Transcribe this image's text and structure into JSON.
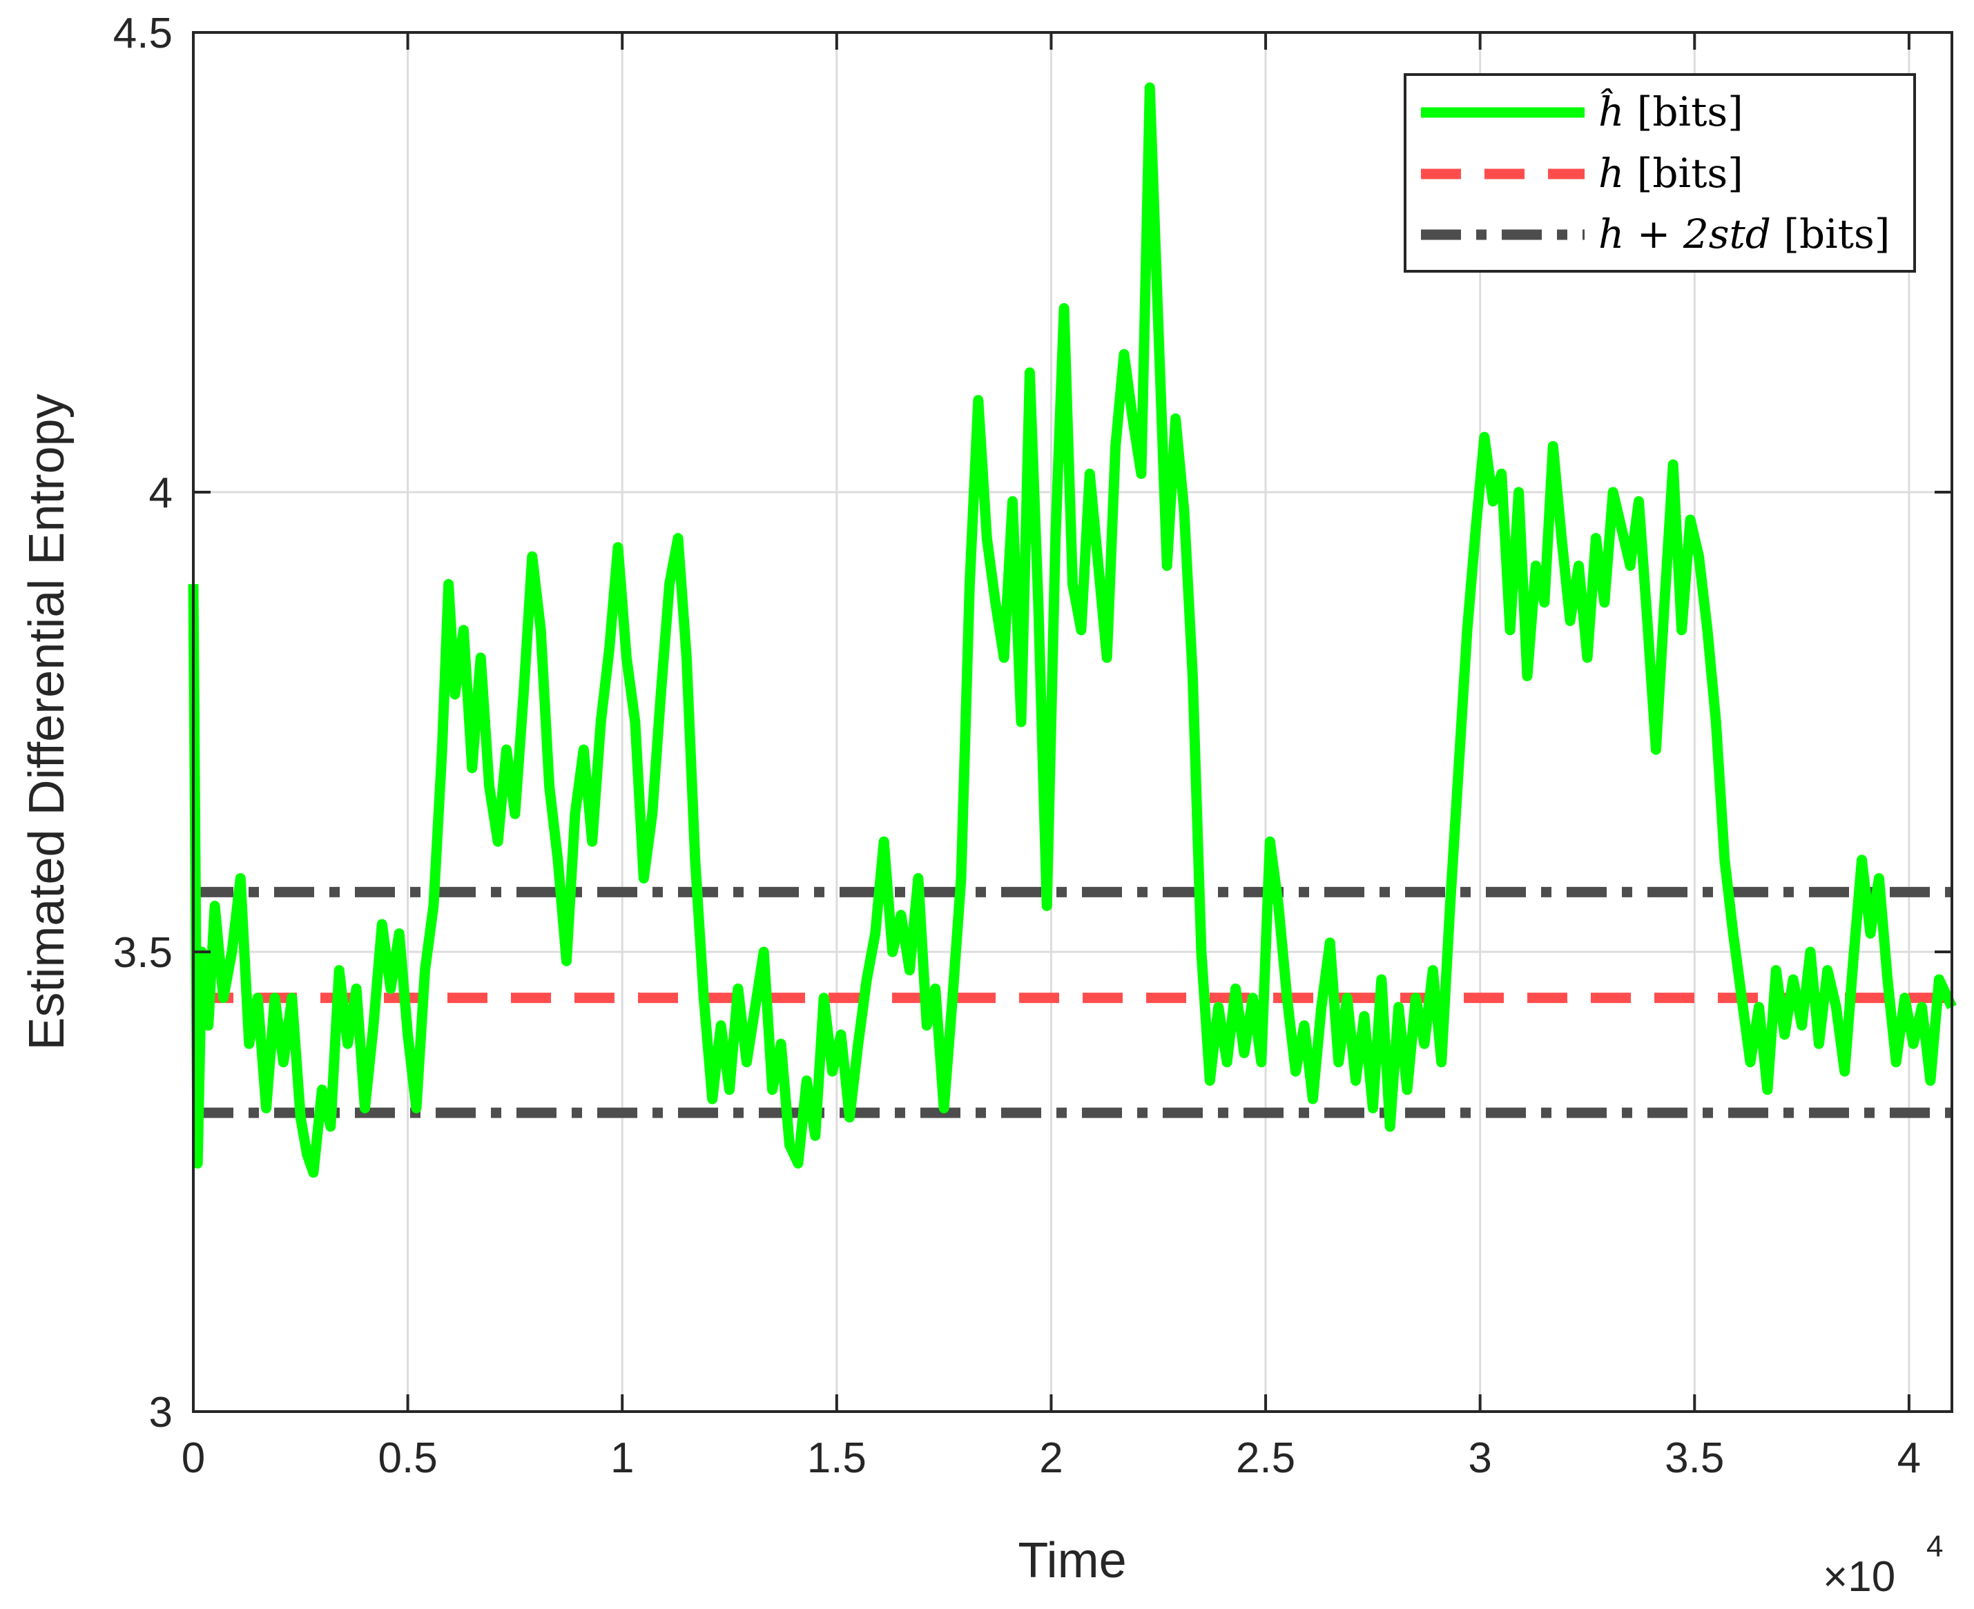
{
  "chart_data": {
    "type": "line",
    "xlabel": "Time",
    "ylabel": "Estimated Differential Entropy",
    "x_exponent_label": "×10",
    "x_exponent_power": "4",
    "xlim": [
      0,
      41000
    ],
    "ylim": [
      3,
      4.5
    ],
    "xticks": [
      0,
      5000,
      10000,
      15000,
      20000,
      25000,
      30000,
      35000,
      40000
    ],
    "xtick_labels": [
      "0",
      "0.5",
      "1",
      "1.5",
      "2",
      "2.5",
      "3",
      "3.5",
      "4"
    ],
    "yticks": [
      3,
      3.5,
      4,
      4.5
    ],
    "ytick_labels": [
      "3",
      "3.5",
      "4",
      "4.5"
    ],
    "grid": true,
    "legend_position": "top-right",
    "colors": {
      "estimate": "#00ff00",
      "true": "#ff4d4d",
      "bound": "#4d4d4d",
      "grid": "#dcdcdc",
      "axis": "#262626"
    },
    "series": [
      {
        "name": "ĥ [bits]",
        "legend_main": "ĥ",
        "legend_unit": "[bits]",
        "style": "solid",
        "points": [
          [
            0,
            3.9
          ],
          [
            100,
            3.27
          ],
          [
            200,
            3.5
          ],
          [
            350,
            3.42
          ],
          [
            500,
            3.55
          ],
          [
            700,
            3.45
          ],
          [
            900,
            3.5
          ],
          [
            1100,
            3.58
          ],
          [
            1300,
            3.4
          ],
          [
            1500,
            3.45
          ],
          [
            1700,
            3.33
          ],
          [
            1900,
            3.45
          ],
          [
            2100,
            3.38
          ],
          [
            2300,
            3.45
          ],
          [
            2500,
            3.32
          ],
          [
            2650,
            3.28
          ],
          [
            2800,
            3.26
          ],
          [
            3000,
            3.35
          ],
          [
            3200,
            3.31
          ],
          [
            3400,
            3.48
          ],
          [
            3600,
            3.4
          ],
          [
            3800,
            3.46
          ],
          [
            4000,
            3.33
          ],
          [
            4200,
            3.42
          ],
          [
            4400,
            3.53
          ],
          [
            4600,
            3.46
          ],
          [
            4800,
            3.52
          ],
          [
            5000,
            3.41
          ],
          [
            5200,
            3.33
          ],
          [
            5400,
            3.48
          ],
          [
            5600,
            3.55
          ],
          [
            5800,
            3.72
          ],
          [
            5950,
            3.9
          ],
          [
            6100,
            3.78
          ],
          [
            6300,
            3.85
          ],
          [
            6500,
            3.7
          ],
          [
            6700,
            3.82
          ],
          [
            6900,
            3.68
          ],
          [
            7100,
            3.62
          ],
          [
            7300,
            3.72
          ],
          [
            7500,
            3.65
          ],
          [
            7700,
            3.78
          ],
          [
            7900,
            3.93
          ],
          [
            8100,
            3.85
          ],
          [
            8300,
            3.68
          ],
          [
            8500,
            3.6
          ],
          [
            8700,
            3.49
          ],
          [
            8900,
            3.65
          ],
          [
            9100,
            3.72
          ],
          [
            9300,
            3.62
          ],
          [
            9500,
            3.75
          ],
          [
            9700,
            3.83
          ],
          [
            9900,
            3.94
          ],
          [
            10100,
            3.82
          ],
          [
            10300,
            3.75
          ],
          [
            10500,
            3.58
          ],
          [
            10700,
            3.65
          ],
          [
            10900,
            3.78
          ],
          [
            11100,
            3.9
          ],
          [
            11300,
            3.95
          ],
          [
            11500,
            3.82
          ],
          [
            11700,
            3.6
          ],
          [
            11900,
            3.45
          ],
          [
            12100,
            3.34
          ],
          [
            12300,
            3.42
          ],
          [
            12500,
            3.35
          ],
          [
            12700,
            3.46
          ],
          [
            12900,
            3.38
          ],
          [
            13100,
            3.44
          ],
          [
            13300,
            3.5
          ],
          [
            13500,
            3.35
          ],
          [
            13700,
            3.4
          ],
          [
            13900,
            3.29
          ],
          [
            14100,
            3.27
          ],
          [
            14300,
            3.36
          ],
          [
            14500,
            3.3
          ],
          [
            14700,
            3.45
          ],
          [
            14900,
            3.37
          ],
          [
            15100,
            3.41
          ],
          [
            15300,
            3.32
          ],
          [
            15500,
            3.4
          ],
          [
            15700,
            3.47
          ],
          [
            15900,
            3.52
          ],
          [
            16100,
            3.62
          ],
          [
            16300,
            3.5
          ],
          [
            16500,
            3.54
          ],
          [
            16700,
            3.48
          ],
          [
            16900,
            3.58
          ],
          [
            17100,
            3.42
          ],
          [
            17300,
            3.46
          ],
          [
            17500,
            3.33
          ],
          [
            17700,
            3.45
          ],
          [
            17900,
            3.58
          ],
          [
            18100,
            3.9
          ],
          [
            18300,
            4.1
          ],
          [
            18500,
            3.95
          ],
          [
            18700,
            3.88
          ],
          [
            18900,
            3.82
          ],
          [
            19100,
            3.99
          ],
          [
            19300,
            3.75
          ],
          [
            19500,
            4.13
          ],
          [
            19700,
            3.88
          ],
          [
            19900,
            3.55
          ],
          [
            20100,
            3.95
          ],
          [
            20300,
            4.2
          ],
          [
            20500,
            3.9
          ],
          [
            20700,
            3.85
          ],
          [
            20900,
            4.02
          ],
          [
            21100,
            3.92
          ],
          [
            21300,
            3.82
          ],
          [
            21500,
            4.05
          ],
          [
            21700,
            4.15
          ],
          [
            21900,
            4.08
          ],
          [
            22100,
            4.02
          ],
          [
            22300,
            4.44
          ],
          [
            22500,
            4.18
          ],
          [
            22700,
            3.92
          ],
          [
            22900,
            4.08
          ],
          [
            23100,
            3.98
          ],
          [
            23300,
            3.8
          ],
          [
            23500,
            3.5
          ],
          [
            23700,
            3.36
          ],
          [
            23900,
            3.44
          ],
          [
            24100,
            3.38
          ],
          [
            24300,
            3.46
          ],
          [
            24500,
            3.39
          ],
          [
            24700,
            3.45
          ],
          [
            24900,
            3.38
          ],
          [
            25100,
            3.62
          ],
          [
            25300,
            3.55
          ],
          [
            25500,
            3.45
          ],
          [
            25700,
            3.37
          ],
          [
            25900,
            3.42
          ],
          [
            26100,
            3.34
          ],
          [
            26300,
            3.44
          ],
          [
            26500,
            3.51
          ],
          [
            26700,
            3.38
          ],
          [
            26900,
            3.45
          ],
          [
            27100,
            3.36
          ],
          [
            27300,
            3.43
          ],
          [
            27500,
            3.33
          ],
          [
            27700,
            3.47
          ],
          [
            27900,
            3.31
          ],
          [
            28100,
            3.44
          ],
          [
            28300,
            3.35
          ],
          [
            28500,
            3.45
          ],
          [
            28700,
            3.4
          ],
          [
            28900,
            3.48
          ],
          [
            29100,
            3.38
          ],
          [
            29300,
            3.55
          ],
          [
            29500,
            3.7
          ],
          [
            29700,
            3.85
          ],
          [
            29900,
            3.96
          ],
          [
            30100,
            4.06
          ],
          [
            30300,
            3.99
          ],
          [
            30500,
            4.02
          ],
          [
            30700,
            3.85
          ],
          [
            30900,
            4.0
          ],
          [
            31100,
            3.8
          ],
          [
            31300,
            3.92
          ],
          [
            31500,
            3.88
          ],
          [
            31700,
            4.05
          ],
          [
            31900,
            3.95
          ],
          [
            32100,
            3.86
          ],
          [
            32300,
            3.92
          ],
          [
            32500,
            3.82
          ],
          [
            32700,
            3.95
          ],
          [
            32900,
            3.88
          ],
          [
            33100,
            4.0
          ],
          [
            33300,
            3.96
          ],
          [
            33500,
            3.92
          ],
          [
            33700,
            3.99
          ],
          [
            33900,
            3.86
          ],
          [
            34100,
            3.72
          ],
          [
            34300,
            3.88
          ],
          [
            34500,
            4.03
          ],
          [
            34700,
            3.85
          ],
          [
            34900,
            3.97
          ],
          [
            35100,
            3.93
          ],
          [
            35300,
            3.85
          ],
          [
            35500,
            3.75
          ],
          [
            35700,
            3.6
          ],
          [
            35900,
            3.52
          ],
          [
            36100,
            3.45
          ],
          [
            36300,
            3.38
          ],
          [
            36500,
            3.44
          ],
          [
            36700,
            3.35
          ],
          [
            36900,
            3.48
          ],
          [
            37100,
            3.41
          ],
          [
            37300,
            3.47
          ],
          [
            37500,
            3.42
          ],
          [
            37700,
            3.5
          ],
          [
            37900,
            3.4
          ],
          [
            38100,
            3.48
          ],
          [
            38300,
            3.44
          ],
          [
            38500,
            3.37
          ],
          [
            38700,
            3.49
          ],
          [
            38900,
            3.6
          ],
          [
            39100,
            3.52
          ],
          [
            39300,
            3.58
          ],
          [
            39500,
            3.47
          ],
          [
            39700,
            3.38
          ],
          [
            39900,
            3.45
          ],
          [
            40100,
            3.4
          ],
          [
            40300,
            3.44
          ],
          [
            40500,
            3.36
          ],
          [
            40700,
            3.47
          ],
          [
            41000,
            3.44
          ]
        ]
      },
      {
        "name": "h [bits]",
        "legend_main": "h",
        "legend_unit": "[bits]",
        "style": "dashed",
        "value": 3.45
      },
      {
        "name": "h + 2std [bits]",
        "legend_main": "h + 2std",
        "legend_unit": "[bits]",
        "style": "dashdot",
        "upper": 3.565,
        "lower": 3.325
      }
    ]
  }
}
